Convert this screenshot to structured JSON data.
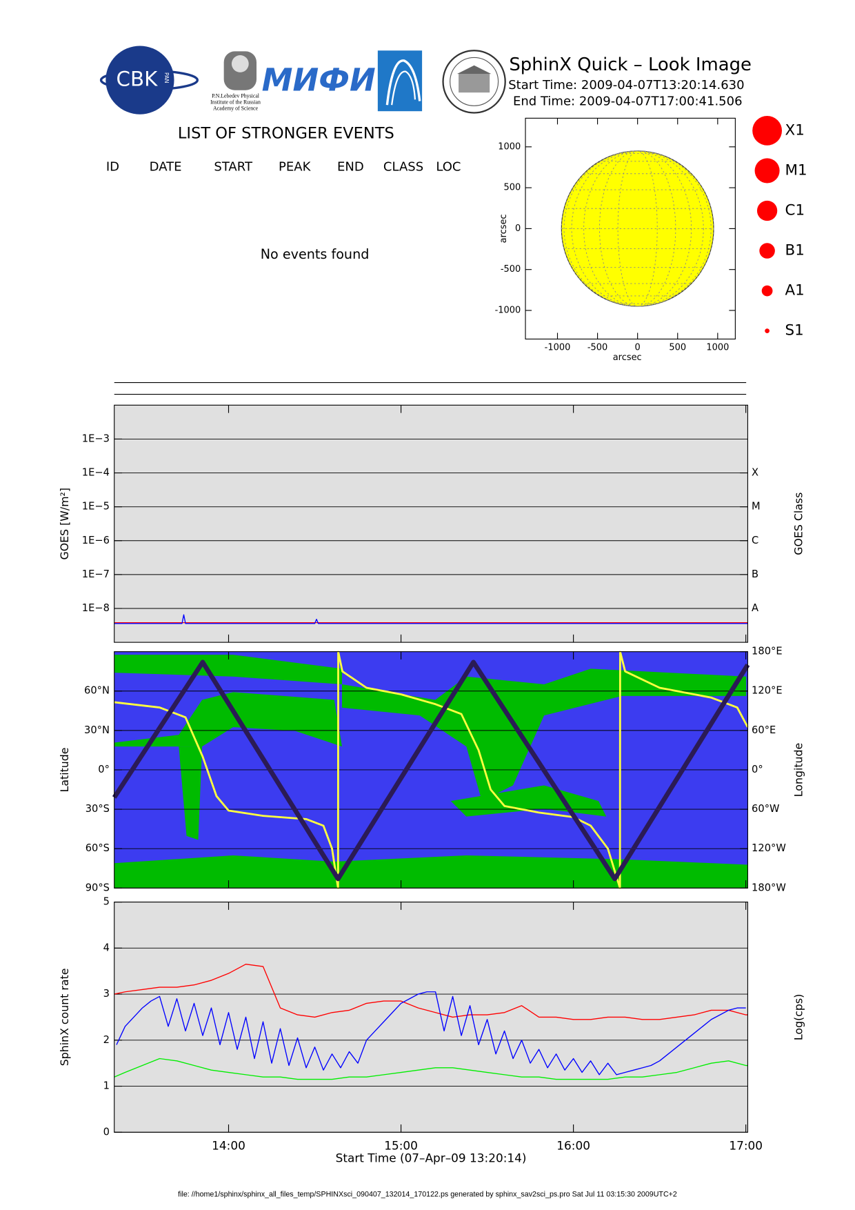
{
  "header": {
    "title": "SphinX Quick – Look Image",
    "start_time": "Start Time: 2009-04-07T13:20:14.630",
    "end_time": "End Time: 2009-04-07T17:00:41.506",
    "logos": {
      "cbk": "CBK",
      "pan": "PAN",
      "lebedev": [
        "P.N.Lebedev Physical",
        "Institute of the Russian",
        "Academy of Science"
      ],
      "mifi": "МИФИ"
    }
  },
  "events": {
    "title": "LIST OF STRONGER EVENTS",
    "columns": [
      "ID",
      "DATE",
      "START",
      "PEAK",
      "END",
      "CLASS",
      "LOC"
    ],
    "message": "No events found"
  },
  "class_legend": [
    "X1",
    "M1",
    "C1",
    "B1",
    "A1",
    "S1"
  ],
  "footer": "file: //home1/sphinx/sphinx_all_files_temp/SPHINXsci_090407_132014_170122.ps generated by sphinx_sav2sci_ps.pro Sat Jul 11 03:15:30 2009UTC+2",
  "chart_data": [
    {
      "type": "disk",
      "xlabel": "arcsec",
      "ylabel": "arcsec",
      "radius": 950,
      "color": "#ffff00",
      "xlim": [
        -1400,
        1220
      ],
      "ylim": [
        -1350,
        1350
      ],
      "xticks": [
        -1000,
        -500,
        0,
        500,
        1000
      ],
      "yticks": [
        -1000,
        -500,
        0,
        500,
        1000
      ]
    },
    {
      "type": "line",
      "ylabel": "GOES [W/m²]",
      "y2label": "GOES Class",
      "log_y": true,
      "grid": true,
      "background": "#e0e0e0",
      "xlim": [
        13.337,
        17.011
      ],
      "ylim": [
        1e-09,
        0.01
      ],
      "yticks": [
        {
          "value": 0.001,
          "label": "1E−3"
        },
        {
          "value": 0.0001,
          "label": "1E−4"
        },
        {
          "value": 1e-05,
          "label": "1E−5"
        },
        {
          "value": 1e-06,
          "label": "1E−6"
        },
        {
          "value": 1e-07,
          "label": "1E−7"
        },
        {
          "value": 1e-08,
          "label": "1E−8"
        }
      ],
      "y2lim": [
        1e-09,
        0.01
      ],
      "y2ticks": [
        {
          "value": 0.0001,
          "label": "X"
        },
        {
          "value": 1e-05,
          "label": "M"
        },
        {
          "value": 1e-06,
          "label": "C"
        },
        {
          "value": 1e-07,
          "label": "B"
        },
        {
          "value": 1e-08,
          "label": "A"
        }
      ],
      "x": [
        13.337,
        13.73,
        13.74,
        13.75,
        14.5,
        14.51,
        14.52,
        17.011
      ],
      "series": [
        {
          "color": "#ff0000",
          "values": [
            3.8e-09,
            3.8e-09,
            3.8e-09,
            3.8e-09,
            3.8e-09,
            3.8e-09,
            3.8e-09,
            3.8e-09
          ]
        },
        {
          "color": "#0000ff",
          "values": [
            3.6e-09,
            3.6e-09,
            6.5e-09,
            3.6e-09,
            3.6e-09,
            4.8e-09,
            3.6e-09,
            3.6e-09
          ]
        }
      ]
    },
    {
      "type": "line",
      "ylabel": "Latitude",
      "y2label": "Longitude",
      "grid": true,
      "background": "#3c3cf0",
      "xlim": [
        13.337,
        17.011
      ],
      "ylim": [
        -90,
        90
      ],
      "yticks": [
        {
          "value": 60,
          "label": "60°N"
        },
        {
          "value": 30,
          "label": "30°N"
        },
        {
          "value": 0,
          "label": "0°"
        },
        {
          "value": -30,
          "label": "30°S"
        },
        {
          "value": -60,
          "label": "60°S"
        },
        {
          "value": -90,
          "label": "90°S"
        }
      ],
      "y2lim": [
        -180,
        180
      ],
      "y2ticks": [
        {
          "value": 180,
          "label": "180°E"
        },
        {
          "value": 120,
          "label": "120°E"
        },
        {
          "value": 60,
          "label": "60°E"
        },
        {
          "value": 0,
          "label": "0°"
        },
        {
          "value": -60,
          "label": "60°W"
        },
        {
          "value": -120,
          "label": "120°W"
        },
        {
          "value": -180,
          "label": "180°W"
        }
      ],
      "series": [
        {
          "color": "#ffff40",
          "axis": "y2",
          "x": [
            13.337,
            13.6,
            13.75,
            13.85,
            13.93,
            14.0,
            14.2,
            14.45,
            14.55,
            14.6,
            14.635,
            14.636,
            14.66,
            14.8,
            15.0,
            15.2,
            15.35,
            15.45,
            15.52,
            15.6,
            15.8,
            16.0,
            16.1,
            16.2,
            16.27,
            16.271,
            16.3,
            16.5,
            16.8,
            16.95,
            17.011
          ],
          "values": [
            103,
            95,
            80,
            20,
            -40,
            -62,
            -70,
            -75,
            -85,
            -120,
            -180,
            180,
            150,
            125,
            115,
            100,
            85,
            30,
            -30,
            -55,
            -65,
            -72,
            -85,
            -120,
            -180,
            180,
            150,
            125,
            110,
            95,
            65
          ]
        },
        {
          "color": "#2b1b55",
          "x": [
            13.337,
            13.85,
            14.635,
            15.42,
            16.24,
            17.011
          ],
          "values": [
            -21,
            82,
            -83,
            82,
            -83,
            80
          ]
        }
      ]
    },
    {
      "type": "line",
      "ylabel": "SphinX count rate",
      "y2label": "Log(cps)",
      "xlabel": "Start Time (07–Apr–09 13:20:14)",
      "grid": true,
      "background": "#e0e0e0",
      "xlim": [
        13.337,
        17.011
      ],
      "ylim": [
        0,
        5
      ],
      "yticks": [
        0,
        1,
        2,
        3,
        4,
        5
      ],
      "xticks": [
        {
          "value": 14,
          "label": "14:00"
        },
        {
          "value": 15,
          "label": "15:00"
        },
        {
          "value": 16,
          "label": "16:00"
        },
        {
          "value": 17,
          "label": "17:00"
        }
      ],
      "x": [
        13.337,
        13.4,
        13.5,
        13.6,
        13.7,
        13.8,
        13.9,
        14.0,
        14.1,
        14.2,
        14.3,
        14.4,
        14.5,
        14.6,
        14.7,
        14.8,
        14.9,
        15.0,
        15.1,
        15.2,
        15.3,
        15.4,
        15.5,
        15.6,
        15.7,
        15.8,
        15.9,
        16.0,
        16.1,
        16.2,
        16.3,
        16.4,
        16.5,
        16.6,
        16.7,
        16.8,
        16.9,
        17.0,
        17.011
      ],
      "series": [
        {
          "color": "#ff0000",
          "values": [
            3.0,
            3.05,
            3.1,
            3.15,
            3.15,
            3.2,
            3.3,
            3.45,
            3.65,
            3.6,
            2.7,
            2.55,
            2.5,
            2.6,
            2.65,
            2.8,
            2.85,
            2.85,
            2.7,
            2.6,
            2.5,
            2.55,
            2.55,
            2.6,
            2.75,
            2.5,
            2.5,
            2.45,
            2.45,
            2.5,
            2.5,
            2.45,
            2.45,
            2.5,
            2.55,
            2.65,
            2.65,
            2.55,
            2.55
          ]
        },
        {
          "color": "#0000ff",
          "x": [
            13.35,
            13.4,
            13.45,
            13.5,
            13.55,
            13.6,
            13.65,
            13.7,
            13.75,
            13.8,
            13.85,
            13.9,
            13.95,
            14.0,
            14.05,
            14.1,
            14.15,
            14.2,
            14.25,
            14.3,
            14.35,
            14.4,
            14.45,
            14.5,
            14.55,
            14.6,
            14.65,
            14.7,
            14.75,
            14.8,
            14.85,
            14.9,
            14.95,
            15.0,
            15.05,
            15.1,
            15.15,
            15.2,
            15.25,
            15.3,
            15.35,
            15.4,
            15.45,
            15.5,
            15.55,
            15.6,
            15.65,
            15.7,
            15.75,
            15.8,
            15.85,
            15.9,
            15.95,
            16.0,
            16.05,
            16.1,
            16.15,
            16.2,
            16.25,
            16.3,
            16.35,
            16.4,
            16.45,
            16.5,
            16.55,
            16.6,
            16.65,
            16.7,
            16.75,
            16.8,
            16.85,
            16.9,
            16.95,
            17.0
          ],
          "values": [
            1.9,
            2.3,
            2.5,
            2.7,
            2.85,
            2.95,
            2.3,
            2.9,
            2.2,
            2.8,
            2.1,
            2.7,
            1.9,
            2.6,
            1.8,
            2.5,
            1.6,
            2.4,
            1.5,
            2.25,
            1.45,
            2.05,
            1.4,
            1.85,
            1.35,
            1.7,
            1.4,
            1.75,
            1.5,
            2.0,
            2.2,
            2.4,
            2.6,
            2.8,
            2.9,
            3.0,
            3.05,
            3.05,
            2.2,
            2.95,
            2.1,
            2.75,
            1.9,
            2.45,
            1.7,
            2.2,
            1.6,
            2.0,
            1.5,
            1.8,
            1.4,
            1.7,
            1.35,
            1.6,
            1.3,
            1.55,
            1.25,
            1.5,
            1.25,
            1.3,
            1.35,
            1.4,
            1.45,
            1.55,
            1.7,
            1.85,
            2.0,
            2.15,
            2.3,
            2.45,
            2.55,
            2.65,
            2.7,
            2.7
          ]
        },
        {
          "color": "#00ee00",
          "values": [
            1.2,
            1.3,
            1.45,
            1.6,
            1.55,
            1.45,
            1.35,
            1.3,
            1.25,
            1.2,
            1.2,
            1.15,
            1.15,
            1.15,
            1.2,
            1.2,
            1.25,
            1.3,
            1.35,
            1.4,
            1.4,
            1.35,
            1.3,
            1.25,
            1.2,
            1.2,
            1.15,
            1.15,
            1.15,
            1.15,
            1.2,
            1.2,
            1.25,
            1.3,
            1.4,
            1.5,
            1.55,
            1.45,
            1.45
          ]
        }
      ]
    }
  ]
}
